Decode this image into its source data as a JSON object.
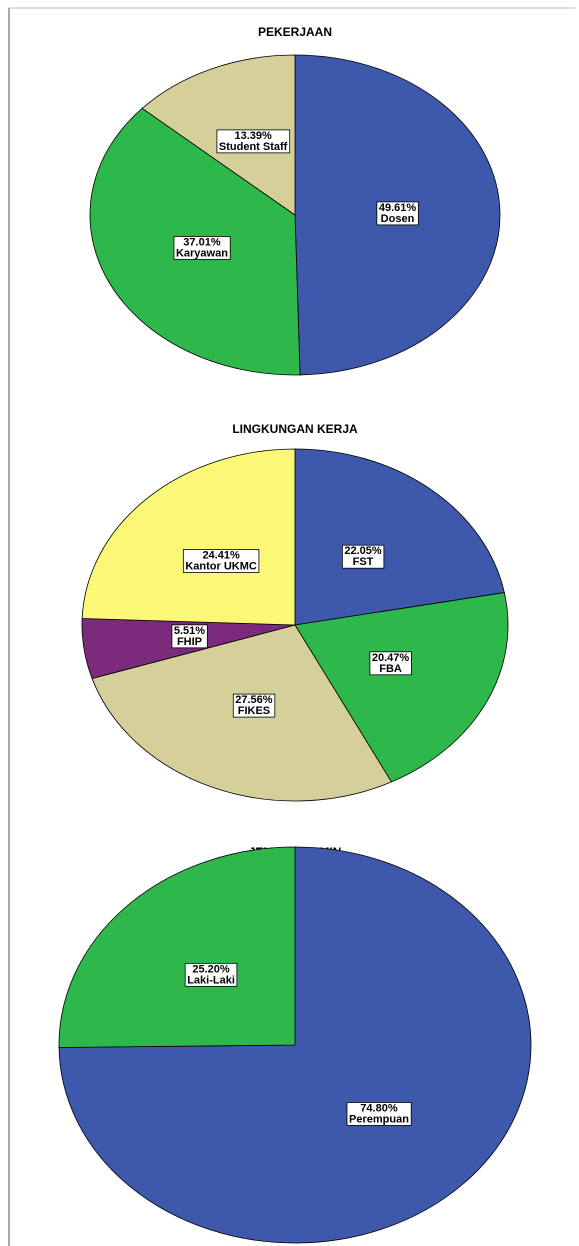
{
  "chart_data": [
    {
      "type": "pie",
      "title": "PEKERJAAN",
      "categories": [
        "Dosen",
        "Karyawan",
        "Student Staff"
      ],
      "values": [
        49.61,
        37.01,
        13.39
      ],
      "value_labels": [
        "49.61%",
        "37.01%",
        "13.39%"
      ],
      "colors": [
        "#3e58ac",
        "#2eb84b",
        "#d5cf99"
      ]
    },
    {
      "type": "pie",
      "title": "LINGKUNGAN KERJA",
      "categories": [
        "FST",
        "FBA",
        "FIKES",
        "FHIP",
        "Kantor UKMC"
      ],
      "values": [
        22.05,
        20.47,
        27.56,
        5.51,
        24.41
      ],
      "value_labels": [
        "22.05%",
        "20.47%",
        "27.56%",
        "5.51%",
        "24.41%"
      ],
      "colors": [
        "#3e58ac",
        "#2eb84b",
        "#d5cf99",
        "#7c2a7c",
        "#fbf878"
      ]
    },
    {
      "type": "pie",
      "title": "JENIS KELAMIN",
      "categories": [
        "Perempuan",
        "Laki-Laki"
      ],
      "values": [
        74.8,
        25.2
      ],
      "value_labels": [
        "74.80%",
        "25.20%"
      ],
      "colors": [
        "#3e58ac",
        "#2eb84b"
      ]
    }
  ]
}
